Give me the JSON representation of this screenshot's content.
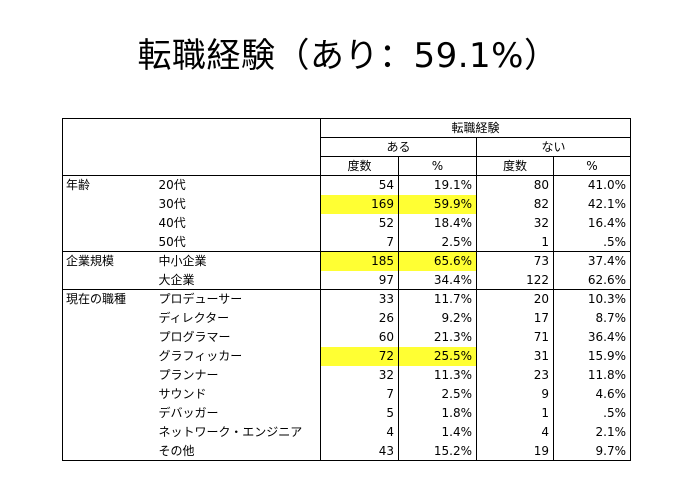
{
  "title": "転職経験（あり：59.1%）",
  "colors": {
    "highlight": "#ffff33"
  },
  "table": {
    "header": {
      "top": "転職経験",
      "groups": [
        "ある",
        "ない"
      ],
      "cols": [
        "度数",
        "%",
        "度数",
        "%"
      ]
    },
    "groups": [
      {
        "label": "年齢",
        "rows": [
          {
            "label": "20代",
            "cells": [
              "54",
              "19.1%",
              "80",
              "41.0%"
            ],
            "highlight": false
          },
          {
            "label": "30代",
            "cells": [
              "169",
              "59.9%",
              "82",
              "42.1%"
            ],
            "highlight": true
          },
          {
            "label": "40代",
            "cells": [
              "52",
              "18.4%",
              "32",
              "16.4%"
            ],
            "highlight": false
          },
          {
            "label": "50代",
            "cells": [
              "7",
              "2.5%",
              "1",
              ".5%"
            ],
            "highlight": false
          }
        ]
      },
      {
        "label": "企業規模",
        "rows": [
          {
            "label": "中小企業",
            "cells": [
              "185",
              "65.6%",
              "73",
              "37.4%"
            ],
            "highlight": true
          },
          {
            "label": "大企業",
            "cells": [
              "97",
              "34.4%",
              "122",
              "62.6%"
            ],
            "highlight": false
          }
        ]
      },
      {
        "label": "現在の職種",
        "rows": [
          {
            "label": "プロデューサー",
            "cells": [
              "33",
              "11.7%",
              "20",
              "10.3%"
            ],
            "highlight": false
          },
          {
            "label": "ディレクター",
            "cells": [
              "26",
              "9.2%",
              "17",
              "8.7%"
            ],
            "highlight": false
          },
          {
            "label": "プログラマー",
            "cells": [
              "60",
              "21.3%",
              "71",
              "36.4%"
            ],
            "highlight": false
          },
          {
            "label": "グラフィッカー",
            "cells": [
              "72",
              "25.5%",
              "31",
              "15.9%"
            ],
            "highlight": true
          },
          {
            "label": "プランナー",
            "cells": [
              "32",
              "11.3%",
              "23",
              "11.8%"
            ],
            "highlight": false
          },
          {
            "label": "サウンド",
            "cells": [
              "7",
              "2.5%",
              "9",
              "4.6%"
            ],
            "highlight": false
          },
          {
            "label": "デバッガー",
            "cells": [
              "5",
              "1.8%",
              "1",
              ".5%"
            ],
            "highlight": false
          },
          {
            "label": "ネットワーク・エンジニア",
            "cells": [
              "4",
              "1.4%",
              "4",
              "2.1%"
            ],
            "highlight": false
          },
          {
            "label": "その他",
            "cells": [
              "43",
              "15.2%",
              "19",
              "9.7%"
            ],
            "highlight": false
          }
        ]
      }
    ]
  }
}
